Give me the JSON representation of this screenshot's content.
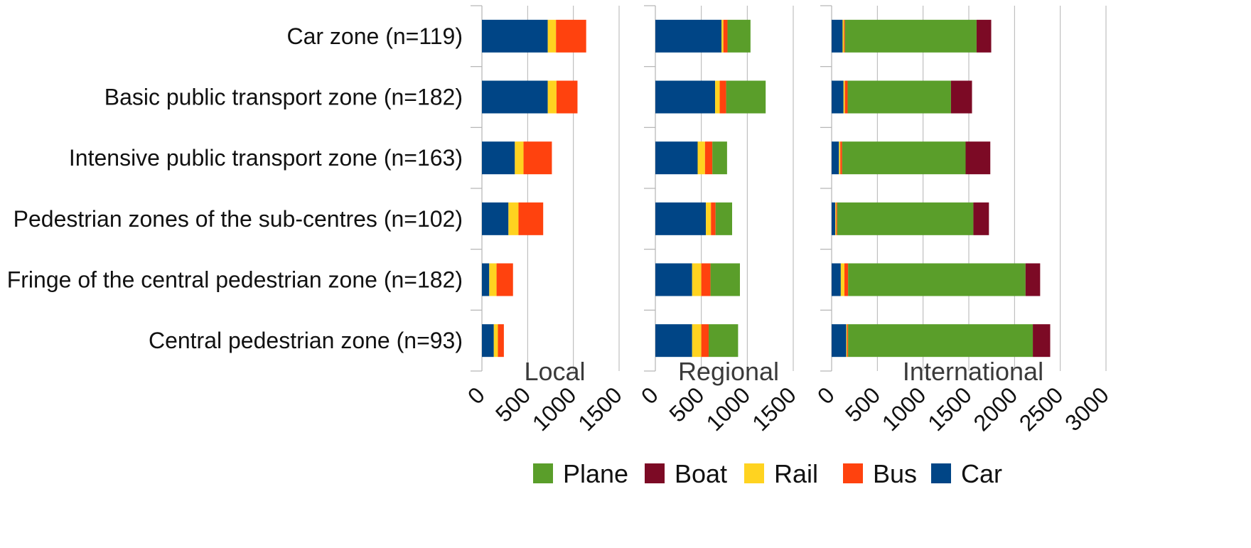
{
  "chart_data": {
    "type": "bar",
    "orientation": "horizontal",
    "stacked": true,
    "categories": [
      "Car zone (n=119)",
      "Basic public transport zone (n=182)",
      "Intensive public transport zone (n=163)",
      "Pedestrian zones of the sub-centres (n=102)",
      "Fringe of the central pedestrian zone (n=182)",
      "Central pedestrian zone (n=93)"
    ],
    "stack_order": [
      "Car",
      "Rail",
      "Bus",
      "Plane",
      "Boat"
    ],
    "legend": {
      "position": "bottom",
      "entries": [
        {
          "name": "Plane",
          "color": "#5a9e2a"
        },
        {
          "name": "Boat",
          "color": "#7c0a25"
        },
        {
          "name": "Rail",
          "color": "#ffd320"
        },
        {
          "name": "Bus",
          "color": "#ff420e"
        },
        {
          "name": "Car",
          "color": "#004586"
        }
      ]
    },
    "grid": true,
    "panels": [
      {
        "title": "Local",
        "xlim": [
          0,
          1500
        ],
        "xticks": [
          "0",
          "500",
          "1000",
          "1500"
        ],
        "series": [
          {
            "name": "Car",
            "values": [
              720,
              720,
              360,
              290,
              80,
              130
            ]
          },
          {
            "name": "Rail",
            "values": [
              90,
              95,
              95,
              110,
              80,
              45
            ]
          },
          {
            "name": "Bus",
            "values": [
              330,
              230,
              310,
              270,
              180,
              65
            ]
          },
          {
            "name": "Plane",
            "values": [
              0,
              0,
              0,
              0,
              0,
              0
            ]
          },
          {
            "name": "Boat",
            "values": [
              0,
              0,
              0,
              0,
              0,
              0
            ]
          }
        ]
      },
      {
        "title": "Regional",
        "xlim": [
          0,
          1500
        ],
        "xticks": [
          "0",
          "500",
          "1000",
          "1500"
        ],
        "series": [
          {
            "name": "Car",
            "values": [
              720,
              650,
              460,
              550,
              400,
              400
            ]
          },
          {
            "name": "Rail",
            "values": [
              20,
              50,
              80,
              55,
              100,
              100
            ]
          },
          {
            "name": "Bus",
            "values": [
              45,
              70,
              80,
              50,
              100,
              80
            ]
          },
          {
            "name": "Plane",
            "values": [
              250,
              430,
              160,
              180,
              320,
              320
            ]
          },
          {
            "name": "Boat",
            "values": [
              0,
              0,
              0,
              0,
              0,
              0
            ]
          }
        ]
      },
      {
        "title": "International",
        "xlim": [
          0,
          3000
        ],
        "xticks": [
          "0",
          "500",
          "1000",
          "1500",
          "2000",
          "2500",
          "3000"
        ],
        "series": [
          {
            "name": "Car",
            "values": [
              120,
              130,
              80,
              40,
              100,
              160
            ]
          },
          {
            "name": "Rail",
            "values": [
              15,
              15,
              15,
              10,
              40,
              10
            ]
          },
          {
            "name": "Bus",
            "values": [
              10,
              30,
              20,
              10,
              40,
              10
            ]
          },
          {
            "name": "Plane",
            "values": [
              1440,
              1130,
              1350,
              1490,
              1940,
              2020
            ]
          },
          {
            "name": "Boat",
            "values": [
              160,
              230,
              270,
              170,
              160,
              190
            ]
          }
        ]
      }
    ]
  }
}
